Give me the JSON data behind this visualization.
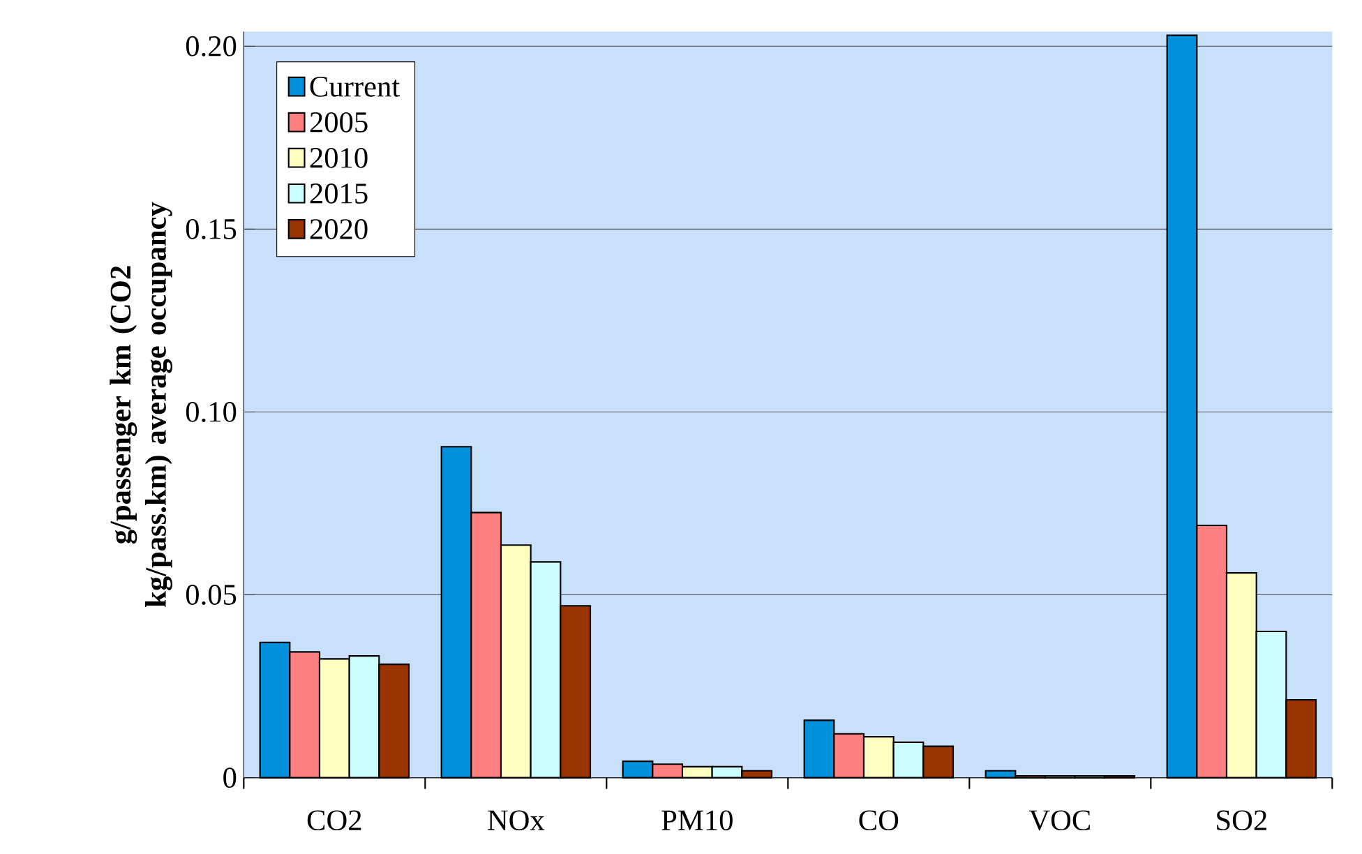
{
  "chart_data": {
    "type": "bar",
    "ylabel": "g/passenger km (CO2 kg/pass.km) average occupancy",
    "categories": [
      "CO2",
      "NOx",
      "PM10",
      "CO",
      "VOC",
      "SO2"
    ],
    "series": [
      {
        "name": "Current",
        "color": "#0090dc",
        "values": [
          0.037,
          0.0905,
          0.0045,
          0.0157,
          0.0019,
          0.203
        ]
      },
      {
        "name": "2005",
        "color": "#ff8080",
        "values": [
          0.0344,
          0.0725,
          0.0037,
          0.012,
          0.0005,
          0.069
        ]
      },
      {
        "name": "2010",
        "color": "#ffffc0",
        "values": [
          0.0325,
          0.0636,
          0.003,
          0.0112,
          0.0005,
          0.056
        ]
      },
      {
        "name": "2015",
        "color": "#ccffff",
        "values": [
          0.0333,
          0.059,
          0.003,
          0.0097,
          0.0005,
          0.04
        ]
      },
      {
        "name": "2020",
        "color": "#993300",
        "values": [
          0.031,
          0.047,
          0.0019,
          0.0086,
          0.0005,
          0.0213
        ]
      }
    ],
    "ylim": [
      0,
      0.204
    ],
    "yticks": [
      0,
      {
        "value": 0.05,
        "label": "0.05"
      },
      {
        "value": 0.1,
        "label": "0.10"
      },
      {
        "value": 0.15,
        "label": "0.15"
      },
      {
        "value": 0.2,
        "label": "0.20"
      }
    ],
    "grid": "y",
    "legend": "top left"
  }
}
